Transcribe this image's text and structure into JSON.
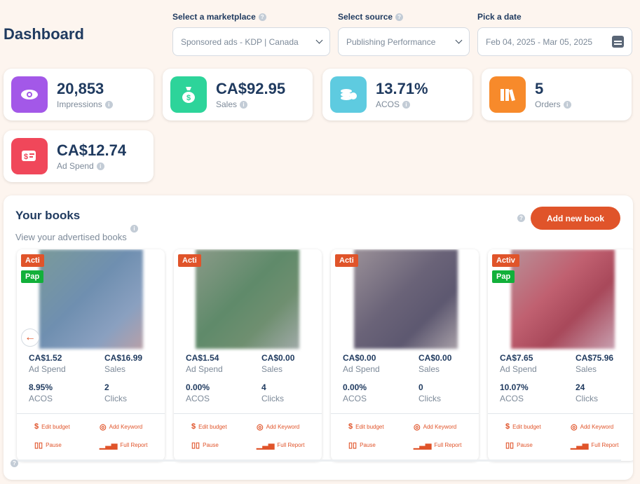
{
  "header": {
    "title": "Dashboard"
  },
  "filters": {
    "marketplace": {
      "label": "Select a marketplace",
      "value": "Sponsored ads - KDP | Canada"
    },
    "source": {
      "label": "Select source",
      "value": "Publishing Performance"
    },
    "date": {
      "label": "Pick a date",
      "value": "Feb 04, 2025 - Mar 05, 2025"
    }
  },
  "stats": [
    {
      "value": "20,853",
      "label": "Impressions",
      "color": "#a358e8",
      "icon": "eye-icon"
    },
    {
      "value": "CA$92.95",
      "label": "Sales",
      "color": "#2dd49a",
      "icon": "money-bag-icon"
    },
    {
      "value": "13.71%",
      "label": "ACOS",
      "color": "#5ecbe0",
      "icon": "coins-icon"
    },
    {
      "value": "5",
      "label": "Orders",
      "color": "#f78a2b",
      "icon": "books-icon"
    },
    {
      "value": "CA$12.74",
      "label": "Ad Spend",
      "color": "#f0475a",
      "icon": "bill-icon"
    }
  ],
  "books": {
    "title": "Your books",
    "subtitle": "View your advertised books",
    "add_button": "Add new book",
    "metric_labels": {
      "ad_spend": "Ad Spend",
      "sales": "Sales",
      "acos": "ACOS",
      "clicks": "Clicks"
    },
    "actions": {
      "edit_budget": "Edit budget",
      "add_keyword": "Add Keyword",
      "pause": "Pause",
      "full_report": "Full Report"
    },
    "items": [
      {
        "badge1": "Acti",
        "badge2": "Pap",
        "ad_spend": "CA$1.52",
        "sales": "CA$16.99",
        "acos": "8.95%",
        "clicks": "2"
      },
      {
        "badge1": "Acti",
        "badge2": "",
        "ad_spend": "CA$1.54",
        "sales": "CA$0.00",
        "acos": "0.00%",
        "clicks": "4"
      },
      {
        "badge1": "Acti",
        "badge2": "",
        "ad_spend": "CA$0.00",
        "sales": "CA$0.00",
        "acos": "0.00%",
        "clicks": "0"
      },
      {
        "badge1": "Activ",
        "badge2": "Pap",
        "ad_spend": "CA$7.65",
        "sales": "CA$75.96",
        "acos": "10.07%",
        "clicks": "24"
      }
    ]
  },
  "colors": {
    "accent": "#e0542a",
    "active_badge": "#e0542a",
    "format_badge": "#12b03a"
  }
}
